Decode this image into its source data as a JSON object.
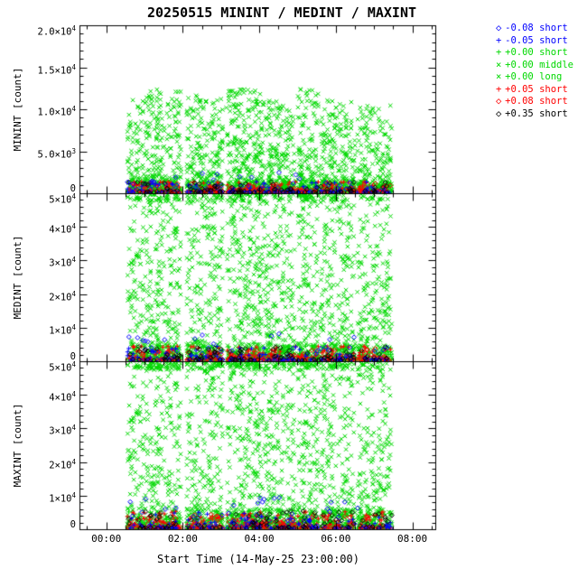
{
  "chart_data": {
    "type": "scatter",
    "title": "20250515 MININT / MEDINT / MAXINT",
    "xlabel": "Start Time (14-May-25 23:00:00)",
    "colors": {
      "green": "#00d800",
      "red": "#ff0000",
      "blue": "#0000ff",
      "black": "#000000"
    },
    "x_axis": {
      "range_hours": [
        -0.7,
        8.6
      ],
      "major_ticks": [
        {
          "hour": 0,
          "label": "00:00"
        },
        {
          "hour": 2,
          "label": "02:00"
        },
        {
          "hour": 4,
          "label": "04:00"
        },
        {
          "hour": 6,
          "label": "06:00"
        },
        {
          "hour": 8,
          "label": "08:00"
        }
      ],
      "minor_step_hours": 0.5
    },
    "panels": [
      {
        "name": "MININT",
        "ylabel": "MININT [count]",
        "ylim": [
          0,
          20000
        ],
        "ytick_major_step": 5000,
        "ytick_minor_step": 1000,
        "yticks": [
          {
            "value": 0,
            "label": "0"
          },
          {
            "value": 5000,
            "label": "5.0×10^3"
          },
          {
            "value": 10000,
            "label": "1.0×10^4"
          },
          {
            "value": 15000,
            "label": "1.5×10^4"
          },
          {
            "value": 20000,
            "label": "2.0×10^4"
          }
        ],
        "plume_scale": 0.62,
        "band_scale": 0.075,
        "spread_pow": 1.8
      },
      {
        "name": "MEDINT",
        "ylabel": "MEDINT [count]",
        "ylim": [
          0,
          50000
        ],
        "ytick_major_step": 10000,
        "ytick_minor_step": 2000,
        "yticks": [
          {
            "value": 0,
            "label": "0"
          },
          {
            "value": 10000,
            "label": "1×10^4"
          },
          {
            "value": 20000,
            "label": "2×10^4"
          },
          {
            "value": 30000,
            "label": "3×10^4"
          },
          {
            "value": 40000,
            "label": "4×10^4"
          },
          {
            "value": 50000,
            "label": "5×10^4"
          }
        ],
        "plume_scale": 1.25,
        "band_scale": 0.1,
        "spread_pow": 1.35
      },
      {
        "name": "MAXINT",
        "ylabel": "MAXINT [count]",
        "ylim": [
          0,
          50000
        ],
        "ytick_major_step": 10000,
        "ytick_minor_step": 2000,
        "yticks": [
          {
            "value": 0,
            "label": "0"
          },
          {
            "value": 10000,
            "label": "1×10^4"
          },
          {
            "value": 20000,
            "label": "2×10^4"
          },
          {
            "value": 30000,
            "label": "3×10^4"
          },
          {
            "value": 40000,
            "label": "4×10^4"
          },
          {
            "value": 50000,
            "label": "5×10^4"
          }
        ],
        "plume_scale": 1.35,
        "band_scale": 0.12,
        "spread_pow": 1.3
      }
    ],
    "legend": [
      {
        "symbol": "diamond",
        "color_key": "blue",
        "label": "-0.08 short"
      },
      {
        "symbol": "plus",
        "color_key": "blue",
        "label": "-0.05 short"
      },
      {
        "symbol": "plus",
        "color_key": "green",
        "label": "+0.00 short"
      },
      {
        "symbol": "cross",
        "color_key": "green",
        "label": "+0.00 middle"
      },
      {
        "symbol": "cross",
        "color_key": "green",
        "label": "+0.00 long"
      },
      {
        "symbol": "plus",
        "color_key": "red",
        "label": "+0.05 short"
      },
      {
        "symbol": "diamond",
        "color_key": "red",
        "label": "+0.08 short"
      },
      {
        "symbol": "diamond",
        "color_key": "black",
        "label": "+0.35 short"
      }
    ],
    "observation": {
      "data_time_span_hours": [
        0.55,
        7.45
      ],
      "bursts": [
        {
          "start": 0.55,
          "end": 1.05,
          "n": 110,
          "height": 0.9
        },
        {
          "start": 1.05,
          "end": 1.95,
          "n": 240,
          "height": 1.0
        },
        {
          "start": 2.1,
          "end": 3.05,
          "n": 240,
          "height": 0.95
        },
        {
          "start": 3.15,
          "end": 4.05,
          "n": 260,
          "height": 1.0
        },
        {
          "start": 4.05,
          "end": 4.95,
          "n": 220,
          "height": 0.9
        },
        {
          "start": 5.0,
          "end": 5.55,
          "n": 150,
          "height": 1.0
        },
        {
          "start": 5.6,
          "end": 6.5,
          "n": 220,
          "height": 0.9
        },
        {
          "start": 6.55,
          "end": 7.45,
          "n": 200,
          "height": 0.85
        }
      ],
      "band_series": [
        {
          "marker": "cross",
          "color_key": "green",
          "n": 520,
          "scale": 1.0,
          "pow": 2.0
        },
        {
          "marker": "plus",
          "color_key": "green",
          "n": 300,
          "scale": 0.9,
          "pow": 2.2
        },
        {
          "marker": "plus",
          "color_key": "red",
          "n": 230,
          "scale": 0.85,
          "pow": 2.4
        },
        {
          "marker": "diamond",
          "color_key": "red",
          "n": 120,
          "scale": 0.7,
          "pow": 2.4
        },
        {
          "marker": "plus",
          "color_key": "blue",
          "n": 70,
          "scale": 0.9,
          "pow": 2.6
        },
        {
          "marker": "diamond",
          "color_key": "blue",
          "n": 90,
          "scale": 1.6,
          "pow": 3.0
        },
        {
          "marker": "diamond",
          "color_key": "black",
          "n": 110,
          "scale": 0.9,
          "pow": 2.4
        }
      ],
      "seed": 20250515,
      "time_quantum_hours": 0.033
    }
  }
}
